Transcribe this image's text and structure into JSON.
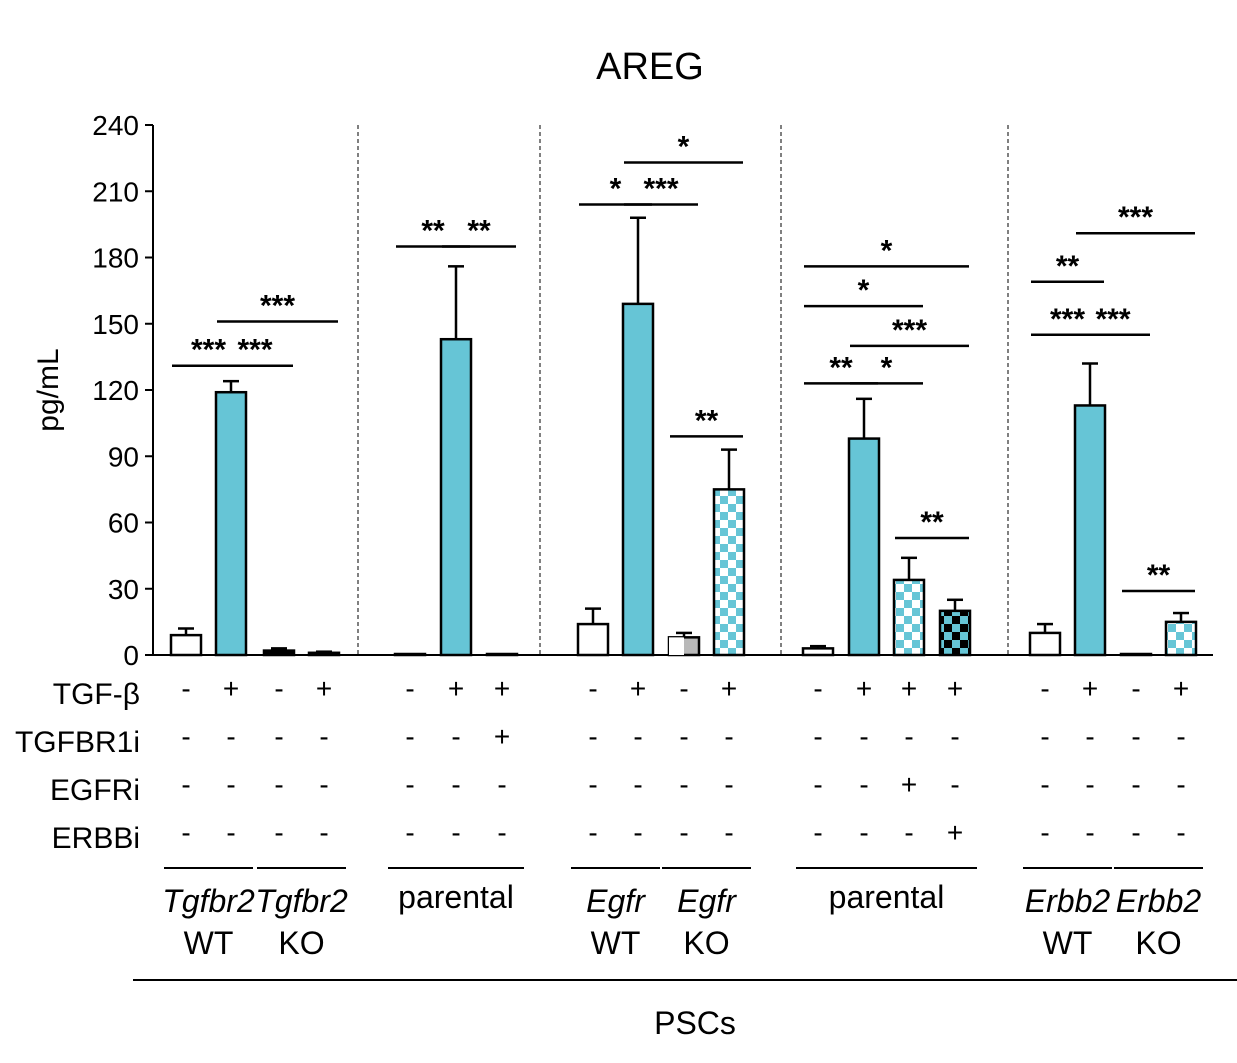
{
  "colors": {
    "cyan": "#66C5D6",
    "white": "#ffffff",
    "black": "#000000",
    "grey": "#b8b8b8"
  },
  "chart_data": {
    "type": "bar",
    "title": "AREG",
    "ylabel": "pg/mL",
    "xlabel": "PSCs",
    "ylim": [
      0,
      240
    ],
    "yticks": [
      "0",
      "30",
      "60",
      "90",
      "120",
      "150",
      "180",
      "210",
      "240"
    ],
    "bars": [
      {
        "value": 9,
        "error": 3,
        "fill": "white"
      },
      {
        "value": 119,
        "error": 5,
        "fill": "cyan"
      },
      {
        "value": 2,
        "error": 1,
        "fill": "black"
      },
      {
        "value": 1,
        "error": 0.5,
        "fill": "black"
      },
      {
        "value": 0.3,
        "error": 0,
        "fill": "black"
      },
      {
        "value": 143,
        "error": 33,
        "fill": "cyan"
      },
      {
        "value": 0.3,
        "error": 0,
        "fill": "black"
      },
      {
        "value": 14,
        "error": 7,
        "fill": "white"
      },
      {
        "value": 159,
        "error": 39,
        "fill": "cyan"
      },
      {
        "value": 8,
        "error": 2,
        "fill": "grey"
      },
      {
        "value": 75,
        "error": 18,
        "fill": "checker-cyan"
      },
      {
        "value": 3,
        "error": 1,
        "fill": "white"
      },
      {
        "value": 98,
        "error": 18,
        "fill": "cyan"
      },
      {
        "value": 34,
        "error": 10,
        "fill": "checker-cyan"
      },
      {
        "value": 20,
        "error": 5,
        "fill": "checker-black"
      },
      {
        "value": 10,
        "error": 4,
        "fill": "white"
      },
      {
        "value": 113,
        "error": 19,
        "fill": "cyan"
      },
      {
        "value": 0.3,
        "error": 0,
        "fill": "black"
      },
      {
        "value": 15,
        "error": 4,
        "fill": "checker-cyan"
      }
    ],
    "significance": [
      {
        "text": "***",
        "from": 0,
        "to": 1,
        "y": 131
      },
      {
        "text": "***",
        "from": 1,
        "to": 2,
        "y": 131
      },
      {
        "text": "***",
        "from": 1,
        "to": 3,
        "y": 151
      },
      {
        "text": "**",
        "from": 4,
        "to": 5,
        "y": 185
      },
      {
        "text": "**",
        "from": 5,
        "to": 6,
        "y": 185
      },
      {
        "text": "*",
        "from": 7,
        "to": 8,
        "y": 204
      },
      {
        "text": "***",
        "from": 8,
        "to": 9,
        "y": 204
      },
      {
        "text": "*",
        "from": 8,
        "to": 10,
        "y": 223
      },
      {
        "text": "**",
        "from": 9,
        "to": 10,
        "y": 99
      },
      {
        "text": "*",
        "from": 11,
        "to": 14,
        "y": 176
      },
      {
        "text": "*",
        "from": 11,
        "to": 13,
        "y": 158
      },
      {
        "text": "***",
        "from": 12,
        "to": 14,
        "y": 140
      },
      {
        "text": "**",
        "from": 11,
        "to": 12,
        "y": 123
      },
      {
        "text": "*",
        "from": 12,
        "to": 13,
        "y": 123
      },
      {
        "text": "**",
        "from": 13,
        "to": 14,
        "y": 53
      },
      {
        "text": "**",
        "from": 15,
        "to": 16,
        "y": 169
      },
      {
        "text": "***",
        "from": 15,
        "to": 16,
        "y": 145
      },
      {
        "text": "***",
        "from": 16,
        "to": 17,
        "y": 145
      },
      {
        "text": "***",
        "from": 16,
        "to": 18,
        "y": 191
      },
      {
        "text": "**",
        "from": 17,
        "to": 18,
        "y": 29
      }
    ],
    "treatments": [
      {
        "label": "TGF-β",
        "values": [
          "-",
          "+",
          "-",
          "+",
          "-",
          "+",
          "+",
          "-",
          "+",
          "-",
          "+",
          "-",
          "+",
          "+",
          "+",
          "-",
          "+",
          "-",
          "+"
        ]
      },
      {
        "label": "TGFBR1i",
        "values": [
          "-",
          "-",
          "-",
          "-",
          "-",
          "-",
          "+",
          "-",
          "-",
          "-",
          "-",
          "-",
          "-",
          "-",
          "-",
          "-",
          "-",
          "-",
          "-"
        ]
      },
      {
        "label": "EGFRi",
        "values": [
          "-",
          "-",
          "-",
          "-",
          "-",
          "-",
          "-",
          "-",
          "-",
          "-",
          "-",
          "-",
          "-",
          "+",
          "-",
          "-",
          "-",
          "-",
          "-"
        ]
      },
      {
        "label": "ERBBi",
        "values": [
          "-",
          "-",
          "-",
          "-",
          "-",
          "-",
          "-",
          "-",
          "-",
          "-",
          "-",
          "-",
          "-",
          "-",
          "+",
          "-",
          "-",
          "-",
          "-"
        ]
      }
    ],
    "groups": [
      {
        "gene": "Tgfbr2",
        "status": "WT",
        "bars": [
          0,
          1
        ]
      },
      {
        "gene": "Tgfbr2",
        "status": "KO",
        "bars": [
          2,
          3
        ]
      },
      {
        "gene": "",
        "status": "parental",
        "bars": [
          4,
          6
        ]
      },
      {
        "gene": "Egfr",
        "status": "WT",
        "bars": [
          7,
          8
        ]
      },
      {
        "gene": "Egfr",
        "status": "KO",
        "bars": [
          9,
          10
        ]
      },
      {
        "gene": "",
        "status": "parental",
        "bars": [
          11,
          14
        ]
      },
      {
        "gene": "Erbb2",
        "status": "WT",
        "bars": [
          15,
          16
        ]
      },
      {
        "gene": "Erbb2",
        "status": "KO",
        "bars": [
          17,
          18
        ]
      }
    ]
  }
}
